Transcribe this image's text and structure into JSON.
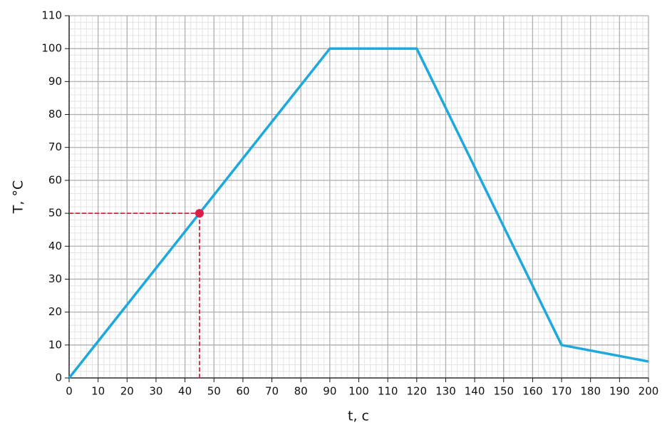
{
  "chart_data": {
    "type": "line",
    "x_label": "t, c",
    "y_label": "T, °C",
    "x": [
      0,
      90,
      120,
      170,
      200
    ],
    "series": [
      {
        "name": "T",
        "color": "#1ea8dc",
        "values": [
          0,
          100,
          100,
          10,
          5
        ]
      }
    ],
    "marker": {
      "x": 45,
      "y": 50,
      "color": "#dc1e46"
    },
    "xlim": [
      0,
      200
    ],
    "xticks": [
      0,
      10,
      20,
      30,
      40,
      50,
      60,
      70,
      80,
      90,
      100,
      110,
      120,
      130,
      140,
      150,
      160,
      170,
      180,
      190,
      200
    ],
    "ylim": [
      0,
      110
    ],
    "yticks": [
      0,
      10,
      20,
      30,
      40,
      50,
      60,
      70,
      80,
      90,
      100,
      110
    ],
    "grid": true,
    "minor_step": 2
  }
}
